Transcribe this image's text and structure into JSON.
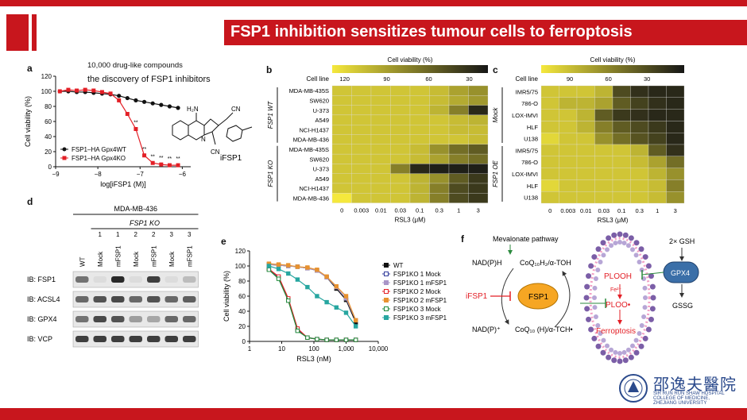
{
  "slide_title": "FSP1 inhibition sensitizes tumour cells to ferroptosis",
  "annotations": {
    "line1": "10,000 drug-like compounds",
    "line2": "the discovery of FSP1 inhibitors"
  },
  "panel_labels": {
    "a": "a",
    "b": "b",
    "c": "c",
    "d": "d",
    "e": "e",
    "f": "f"
  },
  "logo": {
    "chinese": "邵逸夫醫院",
    "english1": "SIR RUN RUN SHAW HOSPITAL",
    "english2": "COLLEGE OF MEDICINE,",
    "english3": "ZHEJIANG UNIVERSITY"
  },
  "colors": {
    "red": "#c8161d",
    "wt": "#111111",
    "ko": "#e31f26"
  },
  "chart_data": [
    {
      "id": "a",
      "type": "line",
      "xlabel": "log[iFSP1 (M)]",
      "ylabel": "Cell viability (%)",
      "xlim": [
        -9,
        -5.8
      ],
      "ylim": [
        0,
        120
      ],
      "xticks": [
        "−9",
        "−8",
        "−7",
        "−6"
      ],
      "yticks": [
        "0",
        "20",
        "40",
        "60",
        "80",
        "100",
        "120"
      ],
      "x": [
        -8.9,
        -8.7,
        -8.5,
        -8.3,
        -8.1,
        -7.9,
        -7.7,
        -7.5,
        -7.3,
        -7.1,
        -6.9,
        -6.7,
        -6.5,
        -6.3,
        -6.1
      ],
      "series": [
        {
          "name": "FSP1–HA Gpx4WT",
          "values": [
            100,
            100,
            99,
            99,
            98,
            97,
            96,
            94,
            91,
            88,
            86,
            84,
            82,
            80,
            78
          ]
        },
        {
          "name": "FSP1–HA Gpx4KO",
          "values": [
            100,
            102,
            101,
            102,
            101,
            99,
            97,
            88,
            70,
            50,
            15,
            5,
            3,
            2,
            2
          ]
        }
      ],
      "stars": "**",
      "compound_label": "iFSP1",
      "structure_labels": {
        "nh2": "H₂N",
        "n": "N",
        "cn1": "CN",
        "cn2": "CN"
      }
    },
    {
      "id": "b",
      "type": "heatmap",
      "colorbar_title": "Cell viability (%)",
      "colorbar_ticks": [
        "120",
        "90",
        "60",
        "30"
      ],
      "row_header": "Cell line",
      "group_labels": [
        "FSP1 WT",
        "FSP1 KO"
      ],
      "rows": [
        "MDA-MB-435S",
        "SW620",
        "U-373",
        "A549",
        "NCI-H1437",
        "MDA-MB-436",
        "MDA-MB-435S",
        "SW620",
        "U-373",
        "A549",
        "NCI-H1437",
        "MDA-MB-436"
      ],
      "columns": [
        "0",
        "0.003",
        "0.01",
        "0.03",
        "0.1",
        "0.3",
        "1",
        "3"
      ],
      "xlabel": "RSL3 (μM)",
      "values": [
        [
          100,
          100,
          100,
          100,
          100,
          95,
          80,
          70
        ],
        [
          100,
          100,
          100,
          100,
          100,
          95,
          85,
          75
        ],
        [
          100,
          100,
          100,
          100,
          100,
          90,
          60,
          10
        ],
        [
          100,
          100,
          100,
          100,
          100,
          100,
          95,
          90
        ],
        [
          100,
          100,
          100,
          100,
          100,
          100,
          95,
          95
        ],
        [
          100,
          100,
          100,
          100,
          100,
          100,
          100,
          95
        ],
        [
          100,
          100,
          100,
          100,
          95,
          70,
          50,
          40
        ],
        [
          100,
          100,
          100,
          100,
          95,
          80,
          60,
          50
        ],
        [
          100,
          100,
          100,
          60,
          10,
          5,
          5,
          5
        ],
        [
          100,
          100,
          100,
          100,
          90,
          70,
          40,
          20
        ],
        [
          100,
          100,
          100,
          100,
          90,
          60,
          30,
          20
        ],
        [
          120,
          100,
          100,
          100,
          90,
          60,
          30,
          20
        ]
      ]
    },
    {
      "id": "c",
      "type": "heatmap",
      "colorbar_title": "Cell viability (%)",
      "colorbar_ticks": [
        "90",
        "60",
        "30"
      ],
      "row_header": "Cell line",
      "group_labels": [
        "Mock",
        "FSP1 OE"
      ],
      "rows": [
        "IMR5/75",
        "786-O",
        "LOX-IMVI",
        "HLF",
        "U138",
        "IMR5/75",
        "786-O",
        "LOX-IMVI",
        "HLF",
        "U138"
      ],
      "columns": [
        "0",
        "0.003",
        "0.01",
        "0.03",
        "0.1",
        "0.3",
        "1",
        "3"
      ],
      "xlabel": "RSL3 (μM)",
      "values": [
        [
          100,
          100,
          100,
          90,
          30,
          15,
          10,
          10
        ],
        [
          100,
          90,
          90,
          80,
          40,
          25,
          15,
          10
        ],
        [
          100,
          100,
          90,
          40,
          20,
          15,
          10,
          10
        ],
        [
          100,
          100,
          90,
          60,
          40,
          30,
          20,
          10
        ],
        [
          110,
          100,
          100,
          70,
          50,
          35,
          25,
          10
        ],
        [
          100,
          100,
          100,
          100,
          100,
          90,
          40,
          15
        ],
        [
          100,
          100,
          100,
          100,
          100,
          95,
          80,
          50
        ],
        [
          100,
          100,
          100,
          100,
          100,
          100,
          90,
          70
        ],
        [
          110,
          100,
          100,
          100,
          100,
          100,
          95,
          60
        ],
        [
          100,
          100,
          100,
          100,
          100,
          100,
          95,
          70
        ]
      ]
    },
    {
      "id": "e",
      "type": "line",
      "xlabel": "RSL3 (nM)",
      "ylabel": "Cell viability (%)",
      "xscale": "log",
      "xlim": [
        1,
        10000
      ],
      "ylim": [
        0,
        120
      ],
      "xticks": [
        "1",
        "10",
        "100",
        "1,000",
        "10,000"
      ],
      "yticks": [
        "0",
        "20",
        "40",
        "60",
        "80",
        "100",
        "120"
      ],
      "x": [
        4,
        8,
        16,
        31,
        63,
        125,
        250,
        500,
        1000,
        2000
      ],
      "series": [
        {
          "name": "WT",
          "color": "#111111",
          "values": [
            102,
            101,
            100,
            99,
            97,
            94,
            85,
            70,
            55,
            25
          ]
        },
        {
          "name": "FSP1KO 1 Mock",
          "color": "#2f3a9a",
          "values": [
            96,
            85,
            55,
            15,
            5,
            3,
            2,
            2,
            2,
            2
          ]
        },
        {
          "name": "FSP1KO 1 mFSP1",
          "color": "#a995c8",
          "values": [
            102,
            101,
            100,
            99,
            97,
            94,
            85,
            72,
            57,
            28
          ]
        },
        {
          "name": "FSP1KO 2 Mock",
          "color": "#e31f26",
          "values": [
            96,
            86,
            57,
            17,
            5,
            3,
            2,
            2,
            2,
            2
          ]
        },
        {
          "name": "FSP1KO 2 mFSP1",
          "color": "#e8922f",
          "values": [
            103,
            102,
            101,
            99,
            98,
            95,
            86,
            73,
            60,
            28
          ]
        },
        {
          "name": "FSP1KO 3 Mock",
          "color": "#1f8a3b",
          "values": [
            95,
            83,
            54,
            14,
            5,
            3,
            2,
            2,
            2,
            2
          ]
        },
        {
          "name": "FSP1KO 3 mFSP1",
          "color": "#27a6a0",
          "values": [
            100,
            96,
            90,
            82,
            72,
            60,
            52,
            45,
            38,
            20
          ]
        }
      ]
    }
  ],
  "western_blot": {
    "cell_line": "MDA-MB-436",
    "group_header": "FSP1 KO",
    "clone_numbers": [
      "1",
      "1",
      "2",
      "2",
      "3",
      "3"
    ],
    "lanes": [
      "WT",
      "Mock",
      "mFSP1",
      "Mock",
      "mFSP1",
      "Mock",
      "mFSP1"
    ],
    "blots": [
      {
        "label": "IB: FSP1",
        "intensities": [
          0.55,
          0.05,
          0.9,
          0.05,
          0.8,
          0.05,
          0.2
        ]
      },
      {
        "label": "IB: ACSL4",
        "intensities": [
          0.6,
          0.7,
          0.75,
          0.6,
          0.7,
          0.6,
          0.65
        ]
      },
      {
        "label": "IB: GPX4",
        "intensities": [
          0.55,
          0.75,
          0.7,
          0.35,
          0.3,
          0.6,
          0.6
        ]
      },
      {
        "label": "IB: VCP",
        "intensities": [
          0.8,
          0.8,
          0.8,
          0.8,
          0.8,
          0.8,
          0.8
        ]
      }
    ]
  },
  "pathway": {
    "mevalonate": "Mevalonate pathway",
    "nadph": "NAD(P)H",
    "nadp": "NAD(P)⁺",
    "coq_red": "CoQ₁₀H₂/α-TOH",
    "coq_ox": "CoQ₁₀ (H)/α-TCH•",
    "ifsp1": "iFSP1",
    "fsp1": "FSP1",
    "plooh": "PLOOH",
    "fe": "Fe²⁺",
    "ploo": "PLOO•",
    "ferroptosis": "Ferroptosis",
    "gsh": "2× GSH",
    "gpx4": "GPX4",
    "gssg": "GSSG"
  }
}
